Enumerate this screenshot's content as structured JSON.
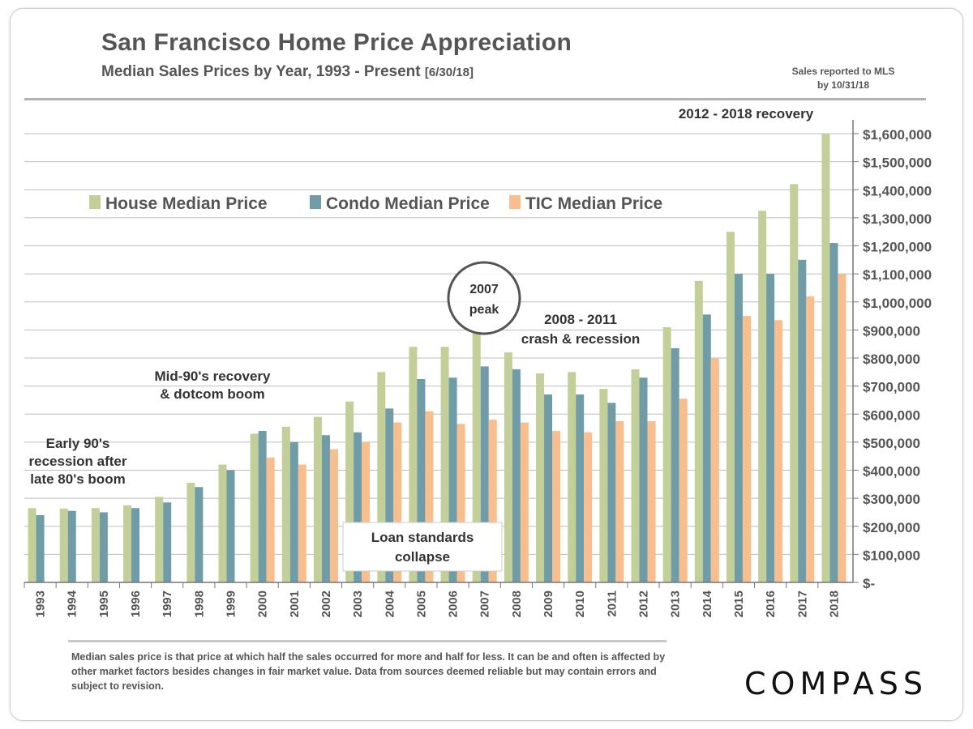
{
  "header": {
    "title": "San Francisco Home Price Appreciation",
    "subtitle": "Median Sales Prices by Year, 1993 - Present",
    "as_of": "[6/30/18]",
    "note_line1": "Sales reported  to MLS",
    "note_line2": "by 10/31/18"
  },
  "footer": {
    "text": "Median sales price is that price at which half the sales occurred for more and half for less. It can be and often is affected by other market factors besides changes in fair market value. Data from sources deemed reliable but may contain errors and subject to revision.",
    "logo": "COMPASS"
  },
  "chart_data": {
    "type": "bar",
    "title": "San Francisco Home Price Appreciation",
    "categories": [
      "1993",
      "1994",
      "1995",
      "1996",
      "1997",
      "1998",
      "1999",
      "2000",
      "2001",
      "2002",
      "2003",
      "2004",
      "2005",
      "2006",
      "2007",
      "2008",
      "2009",
      "2010",
      "2011",
      "2012",
      "2013",
      "2014",
      "2015",
      "2016",
      "2017",
      "2018"
    ],
    "series": [
      {
        "name": "House Median Price",
        "color": "#c3cf98",
        "values": [
          265000,
          263000,
          265000,
          275000,
          305000,
          355000,
          420000,
          530000,
          555000,
          590000,
          645000,
          750000,
          840000,
          840000,
          895000,
          820000,
          745000,
          750000,
          690000,
          760000,
          910000,
          1075000,
          1250000,
          1325000,
          1420000,
          1600000
        ]
      },
      {
        "name": "Condo Median Price",
        "color": "#6f9ca6",
        "values": [
          240000,
          255000,
          250000,
          265000,
          285000,
          340000,
          400000,
          540000,
          500000,
          525000,
          535000,
          620000,
          725000,
          730000,
          770000,
          760000,
          670000,
          670000,
          640000,
          730000,
          835000,
          955000,
          1100000,
          1100000,
          1150000,
          1210000
        ]
      },
      {
        "name": "TIC Median Price",
        "color": "#f8be8e",
        "values": [
          null,
          null,
          null,
          null,
          null,
          null,
          null,
          445000,
          420000,
          475000,
          500000,
          570000,
          610000,
          565000,
          580000,
          570000,
          540000,
          535000,
          575000,
          575000,
          655000,
          800000,
          950000,
          935000,
          1020000,
          1100000
        ]
      }
    ],
    "ylim": [
      0,
      1600000
    ],
    "yticks": [
      0,
      100000,
      200000,
      300000,
      400000,
      500000,
      600000,
      700000,
      800000,
      900000,
      1000000,
      1100000,
      1200000,
      1300000,
      1400000,
      1500000,
      1600000
    ],
    "ytick_labels": [
      "$-",
      "$100,000",
      "$200,000",
      "$300,000",
      "$400,000",
      "$500,000",
      "$600,000",
      "$700,000",
      "$800,000",
      "$900,000",
      "$1,000,000",
      "$1,100,000",
      "$1,200,000",
      "$1,300,000",
      "$1,400,000",
      "$1,500,000",
      "$1,600,000"
    ],
    "yaxis_position": "right",
    "grid": true,
    "legend_placement": "top-left",
    "annotations": {
      "early90s": [
        "Early 90's",
        "recession after",
        "late 80's boom"
      ],
      "mid90s": [
        "Mid-90's recovery",
        "& dotcom boom"
      ],
      "loan": [
        "Loan standards",
        "collapse"
      ],
      "peak": [
        "2007",
        "peak"
      ],
      "crash": [
        "2008 - 2011",
        "crash & recession"
      ],
      "recovery": [
        "2012 - 2018 recovery"
      ]
    }
  }
}
